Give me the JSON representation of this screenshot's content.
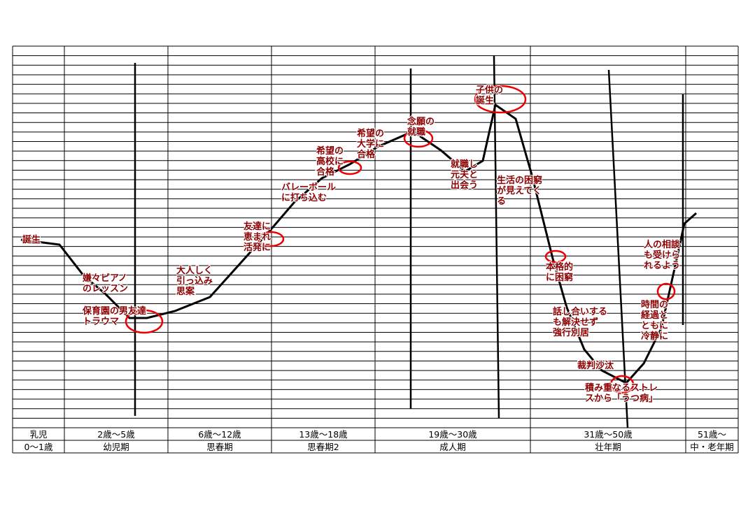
{
  "periods_age": [
    "乳児",
    "2歳～5歳",
    "6歳～12歳",
    "13歳～18歳",
    "19歳～30歳",
    "31歳～50歳",
    "51歳～"
  ],
  "periods_name": [
    "0～1歳",
    "幼児期",
    "思春期",
    "思春期2",
    "成人期",
    "壮年期",
    "中・老年期"
  ],
  "annotations": [
    [
      "誕生"
    ],
    [
      "嫌々ピアノ",
      "のレッスン"
    ],
    [
      "保育園の男友達",
      "トラウマ"
    ],
    [
      "大人しく",
      "引っ込み",
      "思案"
    ],
    [
      "友達に",
      "恵まれ",
      "活発に"
    ],
    [
      "バレーボール",
      "に打ち込む"
    ],
    [
      "希望の",
      "高校に",
      "合格"
    ],
    [
      "希望の",
      "大学に",
      "合格"
    ],
    [
      "念願の",
      "就職"
    ],
    [
      "就職し",
      "元夫と",
      "出会う"
    ],
    [
      "子供の",
      "誕生"
    ],
    [
      "生活の困窮",
      "が見えてく",
      "る"
    ],
    [
      "本格的",
      "に困窮"
    ],
    [
      "話し合いする",
      "も解決せず",
      "強行別居"
    ],
    [
      "裁判沙汰"
    ],
    [
      "積み重なるストレ",
      "スから「うつ病」"
    ],
    [
      "時間の",
      "経過と",
      "ともに",
      "冷静に"
    ],
    [
      "人の相談",
      "も受けら",
      "れるよう"
    ]
  ]
}
